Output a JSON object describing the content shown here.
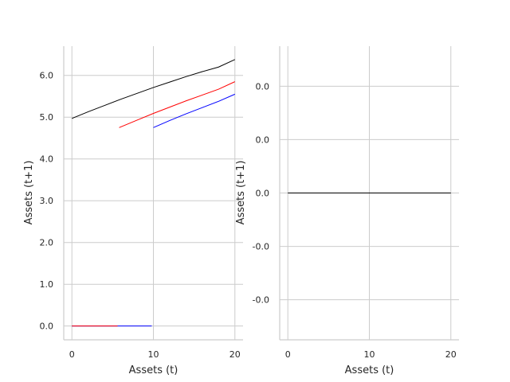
{
  "chart_data": [
    {
      "type": "line",
      "xlabel": "Assets (t)",
      "ylabel": "Assets (t+1)",
      "xlim": [
        -1,
        21
      ],
      "ylim": [
        -0.33,
        6.7
      ],
      "xticks": [
        0,
        10,
        20
      ],
      "xtick_labels": [
        "0",
        "10",
        "20"
      ],
      "yticks": [
        0,
        1,
        2,
        3,
        4,
        5,
        6
      ],
      "ytick_labels": [
        "0.0",
        "1.0",
        "2.0",
        "3.0",
        "4.0",
        "5.0",
        "6.0"
      ],
      "grid": true,
      "series": [
        {
          "color": "#000000",
          "x": [
            0,
            2,
            4,
            6,
            8,
            10,
            12,
            14,
            16,
            18,
            20
          ],
          "y": [
            4.97,
            5.13,
            5.28,
            5.43,
            5.57,
            5.71,
            5.84,
            5.97,
            6.09,
            6.2,
            6.38
          ]
        },
        {
          "color": "#ff0000",
          "x": [
            5.8,
            8,
            10,
            12,
            14,
            16,
            18,
            20
          ],
          "y": [
            4.75,
            4.93,
            5.09,
            5.24,
            5.39,
            5.53,
            5.67,
            5.85
          ]
        },
        {
          "color": "#0000ff",
          "x": [
            10,
            12,
            14,
            16,
            18,
            20
          ],
          "y": [
            4.75,
            4.92,
            5.08,
            5.23,
            5.38,
            5.55
          ]
        },
        {
          "color": "#0000ff",
          "x": [
            0,
            9.8
          ],
          "y": [
            0,
            0
          ]
        },
        {
          "color": "#ff0000",
          "x": [
            0,
            5.6
          ],
          "y": [
            0,
            0
          ]
        }
      ]
    },
    {
      "type": "line",
      "xlabel": "Assets (t)",
      "ylabel": "Assets (t+1)",
      "xlim": [
        -1,
        21
      ],
      "ylim": [
        -0.055,
        0.055
      ],
      "xticks": [
        0,
        10,
        20
      ],
      "xtick_labels": [
        "0",
        "10",
        "20"
      ],
      "yticks": [
        -0.04,
        -0.02,
        0,
        0.02,
        0.04
      ],
      "ytick_labels": [
        "-0.0",
        "-0.0",
        "0.0",
        "0.0",
        "0.0"
      ],
      "grid": true,
      "series": [
        {
          "color": "#000000",
          "x": [
            0,
            20
          ],
          "y": [
            0,
            0
          ]
        }
      ]
    }
  ]
}
